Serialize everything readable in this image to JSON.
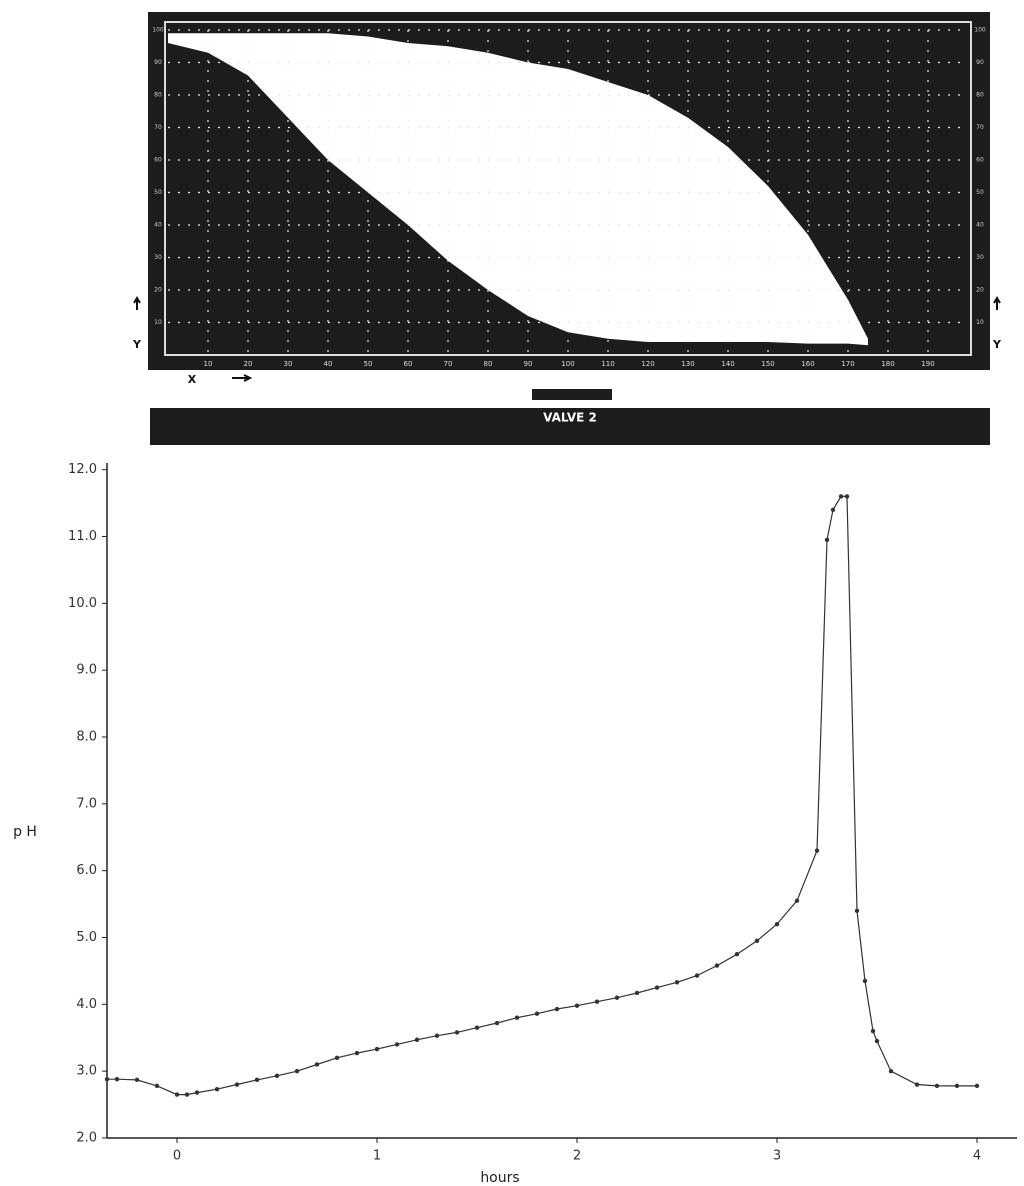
{
  "chart_data": [
    {
      "type": "band",
      "title": "VALVE 2",
      "x_label": "X",
      "y_label": "Y",
      "x": [
        0,
        10,
        20,
        30,
        40,
        50,
        60,
        70,
        80,
        90,
        100,
        110,
        120,
        130,
        140,
        150,
        160,
        170,
        175
      ],
      "series": [
        {
          "color": "#ffffff",
          "values": [
            99,
            99,
            99,
            99,
            99,
            98,
            96,
            95,
            93,
            90,
            88,
            84,
            80,
            73,
            64,
            52,
            37,
            17,
            5
          ]
        },
        {
          "color": "#1c1c1c",
          "values": [
            96,
            93,
            86,
            73,
            60,
            50,
            40,
            29,
            20,
            12,
            7,
            5,
            4,
            4,
            4,
            4,
            3.5,
            3.5,
            3
          ]
        }
      ],
      "xlim": [
        0,
        200
      ],
      "ylim": [
        0,
        100
      ],
      "xticks": [
        10,
        20,
        30,
        40,
        50,
        60,
        70,
        80,
        90,
        100,
        110,
        120,
        130,
        140,
        150,
        160,
        170,
        180,
        190
      ],
      "yticks": [
        10,
        20,
        30,
        40,
        50,
        60,
        70,
        80,
        90,
        100
      ],
      "grid": true
    },
    {
      "type": "line",
      "x_label": "hours",
      "y_label": "p H",
      "x": [
        -0.35,
        -0.3,
        -0.2,
        -0.1,
        0,
        0.05,
        0.1,
        0.2,
        0.3,
        0.4,
        0.5,
        0.6,
        0.7,
        0.8,
        0.9,
        1.0,
        1.1,
        1.2,
        1.3,
        1.4,
        1.5,
        1.6,
        1.7,
        1.8,
        1.9,
        2.0,
        2.1,
        2.2,
        2.3,
        2.4,
        2.5,
        2.6,
        2.7,
        2.8,
        2.9,
        3.0,
        3.1,
        3.2,
        3.25,
        3.28,
        3.32,
        3.35,
        3.4,
        3.44,
        3.48,
        3.5,
        3.57,
        3.7,
        3.8,
        3.9,
        4.0
      ],
      "values": [
        2.88,
        2.88,
        2.87,
        2.78,
        2.65,
        2.65,
        2.68,
        2.73,
        2.8,
        2.87,
        2.93,
        3.0,
        3.1,
        3.2,
        3.27,
        3.33,
        3.4,
        3.47,
        3.53,
        3.58,
        3.65,
        3.72,
        3.8,
        3.86,
        3.93,
        3.98,
        4.04,
        4.1,
        4.17,
        4.25,
        4.33,
        4.43,
        4.58,
        4.75,
        4.95,
        5.2,
        5.55,
        6.3,
        10.95,
        11.4,
        11.6,
        11.6,
        5.4,
        4.35,
        3.6,
        3.45,
        3.0,
        2.8,
        2.78,
        2.78,
        2.78
      ],
      "color": "#333333",
      "xlim": [
        -0.35,
        4.2
      ],
      "ylim": [
        2.0,
        12.1
      ],
      "xticks": [
        0,
        1,
        2,
        3,
        4
      ],
      "yticks": [
        {
          "value": 2,
          "label": "2.0"
        },
        {
          "value": 3,
          "label": "3.0"
        },
        {
          "value": 4,
          "label": "4.0"
        },
        {
          "value": 5,
          "label": "5.0"
        },
        {
          "value": 6,
          "label": "6.0"
        },
        {
          "value": 7,
          "label": "7.0"
        },
        {
          "value": 8,
          "label": "8.0"
        },
        {
          "value": 9,
          "label": "9.0"
        },
        {
          "value": 10,
          "label": "10.0"
        },
        {
          "value": 11,
          "label": "11.0"
        },
        {
          "value": 12,
          "label": "12.0"
        }
      ]
    }
  ]
}
